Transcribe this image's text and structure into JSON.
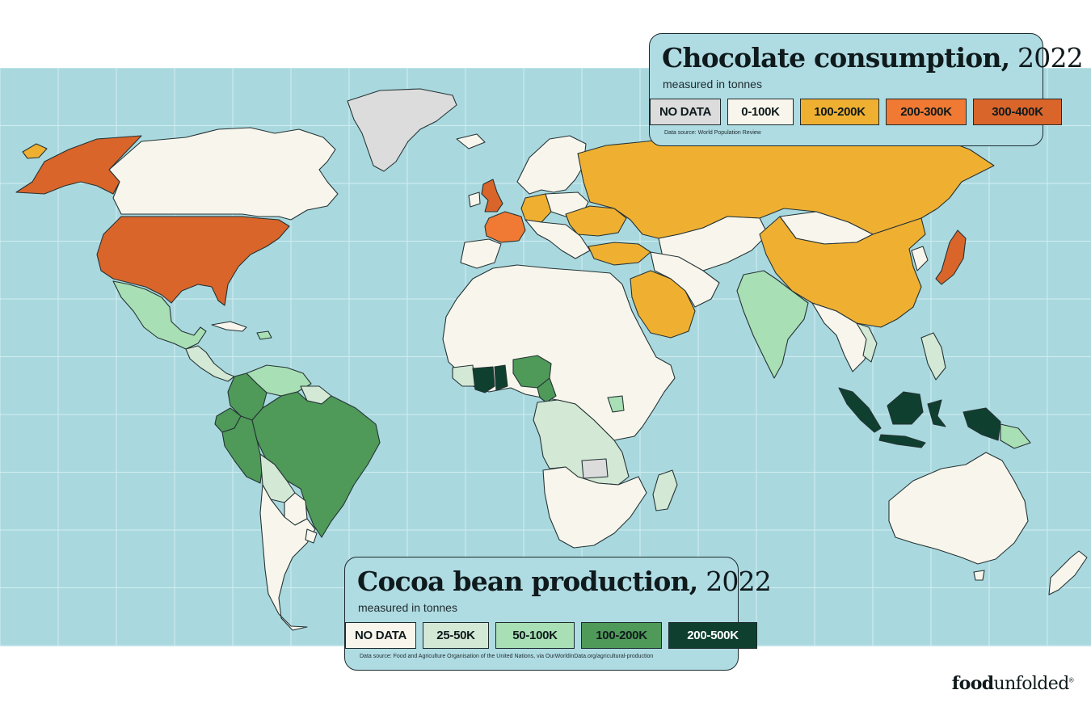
{
  "colors": {
    "ocean": "#a9d9df",
    "grid": "#d2edf0",
    "border": "#253335",
    "no_data_consumption": "#dcdcdc",
    "no_data_production": "#f8f6ec",
    "consumption_0_100k": "#f8f6ec",
    "consumption_100_200k": "#efb032",
    "consumption_200_300k": "#f07a34",
    "consumption_300_400k": "#d9652a",
    "production_25_50k": "#d3e8d5",
    "production_50_100k": "#a8dfb4",
    "production_100_200k": "#4f9959",
    "production_200_500k": "#0f3f2f"
  },
  "consumption_legend": {
    "title_bold": "Chocolate consumption,",
    "title_year": " 2022",
    "subtitle": "measured in tonnes",
    "categories": [
      {
        "label": "NO DATA",
        "color": "#dcdcdc"
      },
      {
        "label": "0-100K",
        "color": "#f8f6ec"
      },
      {
        "label": "100-200K",
        "color": "#efb032"
      },
      {
        "label": "200-300K",
        "color": "#f07a34"
      },
      {
        "label": "300-400K",
        "color": "#d9652a"
      }
    ],
    "source": "Data source: World Population Review"
  },
  "production_legend": {
    "title_bold": "Cocoa bean production,",
    "title_year": " 2022",
    "subtitle": "measured in tonnes",
    "categories": [
      {
        "label": "NO DATA",
        "color": "#f8f6ec"
      },
      {
        "label": "25-50K",
        "color": "#d3e8d5"
      },
      {
        "label": "50-100K",
        "color": "#a8dfb4"
      },
      {
        "label": "100-200K",
        "color": "#4f9959"
      },
      {
        "label": "200-500K",
        "color": "#0f3f2f"
      }
    ],
    "source": "Data source: Food and Agriculture Organisation of the United Nations, via OurWorldinData.org/agricultural-production"
  },
  "brand": {
    "name_bold": "food",
    "name_regular": "unfolded",
    "mark": "®"
  },
  "regions": {
    "consumption_300_400k": [
      "United States",
      "Alaska",
      "United Kingdom",
      "Japan"
    ],
    "consumption_200_300k": [
      "France"
    ],
    "consumption_100_200k": [
      "Russia",
      "China",
      "Germany",
      "Saudi Arabia",
      "Turkey",
      "Ukraine",
      "Poland",
      "Italy"
    ],
    "consumption_no_data": [
      "Greenland"
    ],
    "production_200_500k": [
      "Côte d'Ivoire",
      "Ghana",
      "Indonesia",
      "Papua New Guinea"
    ],
    "production_100_200k": [
      "Nigeria",
      "Cameroon",
      "Brazil",
      "Ecuador",
      "Peru",
      "Colombia"
    ],
    "production_50_100k": [
      "Mexico",
      "India",
      "Dominican Republic",
      "Venezuela",
      "Uganda",
      "Papua New Guinea (east)"
    ],
    "production_25_50k": [
      "Bolivia",
      "Madagascar",
      "Tanzania",
      "Congo",
      "Central America",
      "Vietnam",
      "Philippines"
    ]
  }
}
